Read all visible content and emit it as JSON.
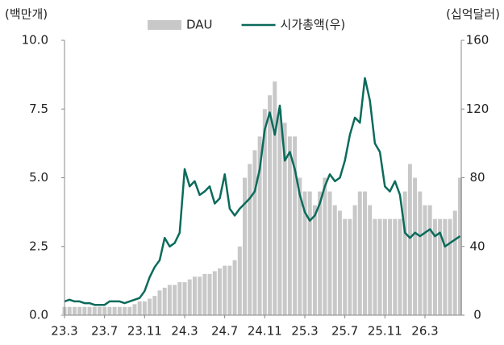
{
  "chart_data": {
    "type": "bar",
    "y_label": "(백만개)",
    "y2_label": "(십억달러)",
    "categories": [
      "23.3",
      null,
      null,
      null,
      null,
      null,
      null,
      null,
      "23.7",
      null,
      null,
      null,
      null,
      null,
      null,
      null,
      "23.11",
      null,
      null,
      null,
      null,
      null,
      null,
      null,
      "24.3",
      null,
      null,
      null,
      null,
      null,
      null,
      null,
      "24.7",
      null,
      null,
      null,
      null,
      null,
      null,
      null,
      "24.11",
      null,
      null,
      null,
      null,
      null,
      null,
      null,
      "25.3",
      null,
      null,
      null,
      null,
      null,
      null,
      null,
      "25.7",
      null,
      null,
      null,
      null,
      null,
      null,
      null,
      "25.11",
      null,
      null,
      null,
      null,
      null,
      null,
      null,
      "26.3",
      null,
      null,
      null,
      null,
      null,
      null,
      null
    ],
    "series": [
      {
        "name": "DAU",
        "color": "#c8c8c8",
        "type": "bar",
        "values": [
          0.3,
          0.3,
          0.3,
          0.3,
          0.3,
          0.3,
          0.3,
          0.3,
          0.3,
          0.3,
          0.3,
          0.3,
          0.3,
          0.3,
          0.4,
          0.5,
          0.5,
          0.6,
          0.7,
          0.9,
          1.0,
          1.1,
          1.1,
          1.2,
          1.2,
          1.3,
          1.4,
          1.4,
          1.5,
          1.5,
          1.6,
          1.7,
          1.8,
          1.8,
          2.0,
          2.5,
          5.0,
          5.5,
          6.0,
          6.5,
          7.5,
          8.0,
          8.5,
          7.5,
          7.0,
          6.5,
          6.5,
          5.0,
          4.5,
          4.5,
          4.0,
          4.5,
          5.0,
          4.5,
          4.0,
          3.8,
          3.5,
          3.5,
          4.0,
          4.5,
          4.5,
          4.0,
          3.5,
          3.5,
          3.5,
          3.5,
          3.5,
          3.5,
          4.5,
          5.5,
          5.0,
          4.5,
          4.0,
          4.0,
          3.5,
          3.5,
          3.5,
          3.5,
          3.8,
          5.0
        ]
      },
      {
        "name": "시가총액(우)",
        "color": "#0b6b5b",
        "type": "line",
        "axis": "y2",
        "values": [
          8,
          9,
          8,
          8,
          7,
          7,
          6,
          6,
          6,
          8,
          8,
          8,
          7,
          8,
          9,
          10,
          14,
          22,
          28,
          32,
          45,
          40,
          42,
          48,
          85,
          75,
          78,
          70,
          72,
          75,
          65,
          68,
          82,
          62,
          58,
          62,
          65,
          68,
          72,
          85,
          108,
          118,
          105,
          122,
          90,
          95,
          85,
          70,
          60,
          55,
          58,
          65,
          75,
          82,
          78,
          80,
          90,
          105,
          115,
          112,
          138,
          125,
          100,
          95,
          75,
          72,
          78,
          70,
          48,
          45,
          48,
          46,
          48,
          50,
          46,
          48,
          40,
          42,
          44,
          46
        ]
      }
    ],
    "ylim": [
      0,
      10
    ],
    "yticks": [
      {
        "value": 0,
        "label": "0.0"
      },
      2.5,
      {
        "value": 5,
        "label": "5.0"
      },
      7.5,
      {
        "value": 10,
        "label": "10.0"
      }
    ],
    "y2lim": [
      0,
      160
    ],
    "y2ticks": [
      0,
      40,
      80,
      120,
      160
    ],
    "legend": "top"
  }
}
